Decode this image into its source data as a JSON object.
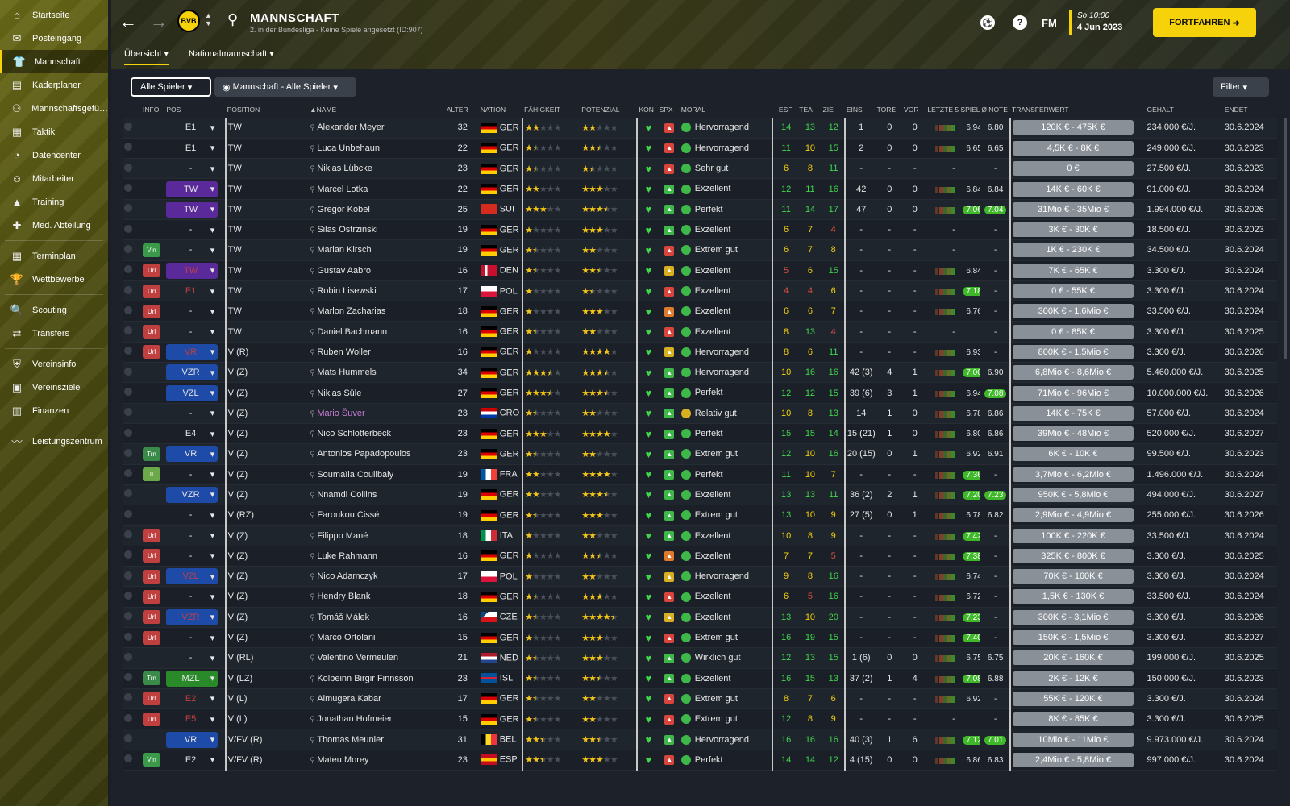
{
  "sidebar": [
    {
      "label": "Startseite",
      "icon": "home-icon",
      "g": "⌂"
    },
    {
      "label": "Posteingang",
      "icon": "inbox-icon",
      "g": "✉"
    },
    {
      "label": "Mannschaft",
      "icon": "shirt-icon",
      "g": "👕",
      "active": true
    },
    {
      "label": "Kaderplaner",
      "icon": "clipboard-icon",
      "g": "▤"
    },
    {
      "label": "Mannschaftsgefü…",
      "icon": "hierarchy-icon",
      "g": "⚇"
    },
    {
      "label": "Taktik",
      "icon": "tactics-icon",
      "g": "▦"
    },
    {
      "label": "Datencenter",
      "icon": "data-icon",
      "g": "◔"
    },
    {
      "label": "Mitarbeiter",
      "icon": "staff-icon",
      "g": "☺"
    },
    {
      "label": "Training",
      "icon": "training-icon",
      "g": "▲"
    },
    {
      "label": "Med. Abteilung",
      "icon": "medical-icon",
      "g": "✚"
    },
    {
      "sep": true
    },
    {
      "label": "Terminplan",
      "icon": "calendar-icon",
      "g": "▦"
    },
    {
      "label": "Wettbewerbe",
      "icon": "trophy-icon",
      "g": "🏆"
    },
    {
      "sep": true
    },
    {
      "label": "Scouting",
      "icon": "scouting-icon",
      "g": "🔍"
    },
    {
      "label": "Transfers",
      "icon": "transfers-icon",
      "g": "⇄"
    },
    {
      "sep": true
    },
    {
      "label": "Vereinsinfo",
      "icon": "shield-icon",
      "g": "⛨"
    },
    {
      "label": "Vereinsziele",
      "icon": "goals-icon",
      "g": "▣"
    },
    {
      "label": "Finanzen",
      "icon": "finance-icon",
      "g": "▥"
    },
    {
      "sep": true
    },
    {
      "label": "Leistungszentrum",
      "icon": "performance-icon",
      "g": "〰"
    }
  ],
  "header": {
    "title": "MANNSCHAFT",
    "subtitle": "2. in der Bundesliga - Keine Spiele angesetzt (ID:907)",
    "crest": "BVB",
    "fm": "FM",
    "day": "So 10:00",
    "date": "4 Jun 2023",
    "continue": "FORTFAHREN",
    "tabs": [
      "Übersicht",
      "Nationalmannschaft"
    ]
  },
  "toolbar": {
    "players": "Alle Spieler",
    "view": "Mannschaft - Alle Spieler",
    "filter": "Filter"
  },
  "columns": [
    "INFO",
    "POS",
    "POSITION",
    "▲NAME",
    "ALTER",
    "NATION",
    "FÄHIGKEIT",
    "POTENZIAL",
    "KON",
    "SPX",
    "MORAL",
    "ESF",
    "TEA",
    "ZIE",
    "EINS",
    "TORE",
    "VOR",
    "LETZTE 5 SPIELE",
    "Ø NOTE",
    "TRANSFERWERT",
    "GEHALT",
    "ENDET"
  ],
  "colors": {
    "accent": "#f5d20a",
    "green": "#3fb82a",
    "red": "#c04040",
    "purple": "#5a2a9a",
    "blue": "#1e4aa8",
    "darkgreen": "#2a8a2a"
  },
  "rows": [
    {
      "info": "",
      "pos": "E1",
      "pc": "",
      "position": "TW",
      "name": "Alexander Meyer",
      "age": "32",
      "nat": "GER",
      "ab": 2,
      "pot": 2,
      "spx": "r",
      "moral": "Hervorragend",
      "esf": "14",
      "tea": "13",
      "zie": "12",
      "eins": "1",
      "tore": "0",
      "vor": "0",
      "last": "6.94",
      "note": "6.80",
      "tw": "120K € - 475K €",
      "gehalt": "234.000 €/J.",
      "end": "30.6.2024"
    },
    {
      "info": "",
      "pos": "E1",
      "pc": "",
      "position": "TW",
      "name": "Luca Unbehaun",
      "age": "22",
      "nat": "GER",
      "ab": 1.5,
      "pot": 2.5,
      "spx": "r",
      "moral": "Hervorragend",
      "esf": "11",
      "tea": "10",
      "zie": "15",
      "eins": "2",
      "tore": "0",
      "vor": "0",
      "last": "6.65",
      "note": "6.65",
      "tw": "4,5K € - 8K €",
      "gehalt": "249.000 €/J.",
      "end": "30.6.2023"
    },
    {
      "info": "",
      "pos": "-",
      "pc": "",
      "position": "TW",
      "name": "Niklas Lübcke",
      "age": "23",
      "nat": "GER",
      "ab": 1.5,
      "pot": 1.5,
      "spx": "r",
      "moral": "Sehr gut",
      "esf": "6",
      "tea": "8",
      "zie": "11",
      "eins": "-",
      "tore": "-",
      "vor": "-",
      "last": "-",
      "note": "-",
      "tw": "0 €",
      "gehalt": "27.500 €/J.",
      "end": "30.6.2023"
    },
    {
      "info": "",
      "pos": "TW",
      "pc": "purple",
      "position": "TW",
      "name": "Marcel Lotka",
      "age": "22",
      "nat": "GER",
      "ab": 2,
      "pot": 3,
      "spx": "g",
      "moral": "Exzellent",
      "esf": "12",
      "tea": "11",
      "zie": "16",
      "eins": "42",
      "tore": "0",
      "vor": "0",
      "last": "6.84",
      "note": "6.84",
      "tw": "14K € - 60K €",
      "gehalt": "91.000 €/J.",
      "end": "30.6.2024"
    },
    {
      "info": "",
      "pos": "TW",
      "pc": "purple",
      "position": "TW",
      "name": "Gregor Kobel",
      "age": "25",
      "nat": "SUI",
      "ab": 3,
      "pot": 3.5,
      "spx": "g",
      "moral": "Perfekt",
      "esf": "11",
      "tea": "14",
      "zie": "17",
      "eins": "47",
      "tore": "0",
      "vor": "0",
      "last": "7.06",
      "note": "7.04",
      "tw": "31Mio € - 35Mio €",
      "gehalt": "1.994.000 €/J.",
      "end": "30.6.2026",
      "hi": true
    },
    {
      "info": "",
      "pos": "-",
      "pc": "",
      "position": "TW",
      "name": "Silas Ostrzinski",
      "age": "19",
      "nat": "GER",
      "ab": 1,
      "pot": 3,
      "spx": "g",
      "moral": "Exzellent",
      "esf": "6",
      "tea": "7",
      "zie": "4",
      "eins": "-",
      "tore": "-",
      "vor": "-",
      "last": "-",
      "note": "-",
      "tw": "3K € - 30K €",
      "gehalt": "18.500 €/J.",
      "end": "30.6.2023"
    },
    {
      "info": "Vin",
      "pos": "-",
      "pc": "",
      "position": "TW",
      "name": "Marian Kirsch",
      "age": "19",
      "nat": "GER",
      "ab": 1.5,
      "pot": 2,
      "spx": "r",
      "moral": "Extrem gut",
      "esf": "6",
      "tea": "7",
      "zie": "8",
      "eins": "-",
      "tore": "-",
      "vor": "-",
      "last": "-",
      "note": "-",
      "tw": "1K € - 230K €",
      "gehalt": "34.500 €/J.",
      "end": "30.6.2024"
    },
    {
      "info": "Url",
      "pos": "TW",
      "pc": "purple",
      "position": "TW",
      "name": "Gustav Aabro",
      "age": "16",
      "nat": "DEN",
      "ab": 1.5,
      "pot": 2.5,
      "spx": "y",
      "moral": "Exzellent",
      "esf": "5",
      "tea": "6",
      "zie": "15",
      "eins": "-",
      "tore": "-",
      "vor": "-",
      "last": "6.84",
      "note": "-",
      "tw": "7K € - 65K €",
      "gehalt": "3.300 €/J.",
      "end": "30.6.2024"
    },
    {
      "info": "Url",
      "pos": "E1",
      "pc": "",
      "position": "TW",
      "name": "Robin Lisewski",
      "age": "17",
      "nat": "POL",
      "ab": 1,
      "pot": 1.5,
      "spx": "r",
      "moral": "Exzellent",
      "esf": "4",
      "tea": "4",
      "zie": "6",
      "eins": "-",
      "tore": "-",
      "vor": "-",
      "last": "7.18",
      "note": "-",
      "tw": "0 € - 55K €",
      "gehalt": "3.300 €/J.",
      "end": "30.6.2024",
      "hl": true
    },
    {
      "info": "Url",
      "pos": "-",
      "pc": "",
      "position": "TW",
      "name": "Marlon Zacharias",
      "age": "18",
      "nat": "GER",
      "ab": 1,
      "pot": 3,
      "spx": "o",
      "moral": "Exzellent",
      "esf": "6",
      "tea": "6",
      "zie": "7",
      "eins": "-",
      "tore": "-",
      "vor": "-",
      "last": "6.76",
      "note": "-",
      "tw": "300K € - 1,6Mio €",
      "gehalt": "33.500 €/J.",
      "end": "30.6.2024"
    },
    {
      "info": "Url",
      "pos": "-",
      "pc": "",
      "position": "TW",
      "name": "Daniel Bachmann",
      "age": "16",
      "nat": "GER",
      "ab": 1.5,
      "pot": 2,
      "spx": "r",
      "moral": "Exzellent",
      "esf": "8",
      "tea": "13",
      "zie": "4",
      "eins": "-",
      "tore": "-",
      "vor": "-",
      "last": "-",
      "note": "-",
      "tw": "0 € - 85K €",
      "gehalt": "3.300 €/J.",
      "end": "30.6.2025"
    },
    {
      "info": "Url",
      "pos": "VR",
      "pc": "blue",
      "position": "V (R)",
      "name": "Ruben Woller",
      "age": "16",
      "nat": "GER",
      "ab": 1,
      "pot": 4,
      "spx": "y",
      "moral": "Hervorragend",
      "esf": "8",
      "tea": "6",
      "zie": "11",
      "eins": "-",
      "tore": "-",
      "vor": "-",
      "last": "6.93",
      "note": "-",
      "tw": "800K € - 1,5Mio €",
      "gehalt": "3.300 €/J.",
      "end": "30.6.2026"
    },
    {
      "info": "",
      "pos": "VZR",
      "pc": "blue",
      "position": "V (Z)",
      "name": "Mats Hummels",
      "age": "34",
      "nat": "GER",
      "ab": 3.5,
      "pot": 3.5,
      "spx": "g",
      "moral": "Hervorragend",
      "esf": "10",
      "tea": "16",
      "zie": "16",
      "eins": "42 (3)",
      "tore": "4",
      "vor": "1",
      "last": "7.00",
      "note": "6.90",
      "tw": "6,8Mio € - 8,6Mio €",
      "gehalt": "5.460.000 €/J.",
      "end": "30.6.2025",
      "hl": true
    },
    {
      "info": "",
      "pos": "VZL",
      "pc": "blue",
      "position": "V (Z)",
      "name": "Niklas Süle",
      "age": "27",
      "nat": "GER",
      "ab": 3.5,
      "pot": 3.5,
      "spx": "g",
      "moral": "Perfekt",
      "esf": "12",
      "tea": "12",
      "zie": "15",
      "eins": "39 (6)",
      "tore": "3",
      "vor": "1",
      "last": "6.94",
      "note": "7.08",
      "tw": "71Mio € - 96Mio €",
      "gehalt": "10.000.000 €/J.",
      "end": "30.6.2026",
      "hn": true
    },
    {
      "info": "",
      "pos": "-",
      "pc": "",
      "position": "V (Z)",
      "name": "Mario Šuver",
      "age": "23",
      "nat": "CRO",
      "ab": 1.5,
      "pot": 2,
      "spx": "g",
      "moral": "Relativ gut",
      "esf": "10",
      "tea": "8",
      "zie": "13",
      "eins": "14",
      "tore": "1",
      "vor": "0",
      "last": "6.78",
      "note": "6.86",
      "tw": "14K € - 75K €",
      "gehalt": "57.000 €/J.",
      "end": "30.6.2024",
      "loan": true
    },
    {
      "info": "",
      "pos": "E4",
      "pc": "",
      "position": "V (Z)",
      "name": "Nico Schlotterbeck",
      "age": "23",
      "nat": "GER",
      "ab": 3,
      "pot": 4,
      "spx": "g",
      "moral": "Perfekt",
      "esf": "15",
      "tea": "15",
      "zie": "14",
      "eins": "15 (21)",
      "tore": "1",
      "vor": "0",
      "last": "6.80",
      "note": "6.86",
      "tw": "39Mio € - 48Mio €",
      "gehalt": "520.000 €/J.",
      "end": "30.6.2027"
    },
    {
      "info": "Trn",
      "pos": "VR",
      "pc": "blue",
      "position": "V (Z)",
      "name": "Antonios Papadopoulos",
      "age": "23",
      "nat": "GER",
      "ab": 1.5,
      "pot": 2,
      "spx": "g",
      "moral": "Extrem gut",
      "esf": "12",
      "tea": "10",
      "zie": "16",
      "eins": "20 (15)",
      "tore": "0",
      "vor": "1",
      "last": "6.92",
      "note": "6.91",
      "tw": "6K € - 10K €",
      "gehalt": "99.500 €/J.",
      "end": "30.6.2023"
    },
    {
      "info": "II",
      "pos": "-",
      "pc": "",
      "position": "V (Z)",
      "name": "Soumaïla Coulibaly",
      "age": "19",
      "nat": "FRA",
      "ab": 2,
      "pot": 4,
      "spx": "g",
      "moral": "Perfekt",
      "esf": "11",
      "tea": "10",
      "zie": "7",
      "eins": "-",
      "tore": "-",
      "vor": "-",
      "last": "7.36",
      "note": "-",
      "tw": "3,7Mio € - 6,2Mio €",
      "gehalt": "1.496.000 €/J.",
      "end": "30.6.2024",
      "hl": true
    },
    {
      "info": "",
      "pos": "VZR",
      "pc": "blue",
      "position": "V (Z)",
      "name": "Nnamdi Collins",
      "age": "19",
      "nat": "GER",
      "ab": 2,
      "pot": 3.5,
      "spx": "g",
      "moral": "Exzellent",
      "esf": "13",
      "tea": "13",
      "zie": "11",
      "eins": "36 (2)",
      "tore": "2",
      "vor": "1",
      "last": "7.20",
      "note": "7.23",
      "tw": "950K € - 5,8Mio €",
      "gehalt": "494.000 €/J.",
      "end": "30.6.2027",
      "hl": true,
      "hn": true
    },
    {
      "info": "",
      "pos": "-",
      "pc": "",
      "position": "V (RZ)",
      "name": "Faroukou Cissé",
      "age": "19",
      "nat": "GER",
      "ab": 1.5,
      "pot": 3,
      "spx": "g",
      "moral": "Extrem gut",
      "esf": "13",
      "tea": "10",
      "zie": "9",
      "eins": "27 (5)",
      "tore": "0",
      "vor": "1",
      "last": "6.78",
      "note": "6.82",
      "tw": "2,9Mio € - 4,9Mio €",
      "gehalt": "255.000 €/J.",
      "end": "30.6.2026"
    },
    {
      "info": "Url",
      "pos": "-",
      "pc": "",
      "position": "V (Z)",
      "name": "Filippo Mané",
      "age": "18",
      "nat": "ITA",
      "ab": 1,
      "pot": 2,
      "spx": "g",
      "moral": "Exzellent",
      "esf": "10",
      "tea": "8",
      "zie": "9",
      "eins": "-",
      "tore": "-",
      "vor": "-",
      "last": "7.42",
      "note": "-",
      "tw": "100K € - 220K €",
      "gehalt": "33.500 €/J.",
      "end": "30.6.2024",
      "hl": true
    },
    {
      "info": "Url",
      "pos": "-",
      "pc": "",
      "position": "V (Z)",
      "name": "Luke Rahmann",
      "age": "16",
      "nat": "GER",
      "ab": 1,
      "pot": 2.5,
      "spx": "o",
      "moral": "Exzellent",
      "esf": "7",
      "tea": "7",
      "zie": "5",
      "eins": "-",
      "tore": "-",
      "vor": "-",
      "last": "7.38",
      "note": "-",
      "tw": "325K € - 800K €",
      "gehalt": "3.300 €/J.",
      "end": "30.6.2025",
      "hl": true
    },
    {
      "info": "Url",
      "pos": "VZL",
      "pc": "blue",
      "position": "V (Z)",
      "name": "Nico Adamczyk",
      "age": "17",
      "nat": "POL",
      "ab": 1,
      "pot": 2,
      "spx": "y",
      "moral": "Hervorragend",
      "esf": "9",
      "tea": "8",
      "zie": "16",
      "eins": "-",
      "tore": "-",
      "vor": "-",
      "last": "6.74",
      "note": "-",
      "tw": "70K € - 160K €",
      "gehalt": "3.300 €/J.",
      "end": "30.6.2024"
    },
    {
      "info": "Url",
      "pos": "-",
      "pc": "",
      "position": "V (Z)",
      "name": "Hendry Blank",
      "age": "18",
      "nat": "GER",
      "ab": 1.5,
      "pot": 3,
      "spx": "r",
      "moral": "Exzellent",
      "esf": "6",
      "tea": "5",
      "zie": "16",
      "eins": "-",
      "tore": "-",
      "vor": "-",
      "last": "6.72",
      "note": "-",
      "tw": "1,5K € - 130K €",
      "gehalt": "33.500 €/J.",
      "end": "30.6.2024"
    },
    {
      "info": "Url",
      "pos": "VZR",
      "pc": "blue",
      "position": "V (Z)",
      "name": "Tomáš Málek",
      "age": "16",
      "nat": "CZE",
      "ab": 1.5,
      "pot": 4.5,
      "spx": "y",
      "moral": "Exzellent",
      "esf": "13",
      "tea": "10",
      "zie": "20",
      "eins": "-",
      "tore": "-",
      "vor": "-",
      "last": "7.23",
      "note": "-",
      "tw": "300K € - 3,1Mio €",
      "gehalt": "3.300 €/J.",
      "end": "30.6.2026",
      "hl": true
    },
    {
      "info": "Url",
      "pos": "-",
      "pc": "",
      "position": "V (Z)",
      "name": "Marco Ortolani",
      "age": "15",
      "nat": "GER",
      "ab": 1,
      "pot": 3,
      "spx": "r",
      "moral": "Extrem gut",
      "esf": "16",
      "tea": "19",
      "zie": "15",
      "eins": "-",
      "tore": "-",
      "vor": "-",
      "last": "7.40",
      "note": "-",
      "tw": "150K € - 1,5Mio €",
      "gehalt": "3.300 €/J.",
      "end": "30.6.2027",
      "hl": true
    },
    {
      "info": "",
      "pos": "-",
      "pc": "",
      "position": "V (RL)",
      "name": "Valentino Vermeulen",
      "age": "21",
      "nat": "NED",
      "ab": 1.5,
      "pot": 3,
      "spx": "g",
      "moral": "Wirklich gut",
      "esf": "12",
      "tea": "13",
      "zie": "15",
      "eins": "1 (6)",
      "tore": "0",
      "vor": "0",
      "last": "6.75",
      "note": "6.75",
      "tw": "20K € - 160K €",
      "gehalt": "199.000 €/J.",
      "end": "30.6.2025"
    },
    {
      "info": "Trn",
      "pos": "MZL",
      "pc": "green",
      "position": "V (LZ)",
      "name": "Kolbeinn Birgir Finnsson",
      "age": "23",
      "nat": "ISL",
      "ab": 1.5,
      "pot": 2.5,
      "spx": "g",
      "moral": "Exzellent",
      "esf": "16",
      "tea": "15",
      "zie": "13",
      "eins": "37 (2)",
      "tore": "1",
      "vor": "4",
      "last": "7.08",
      "note": "6.88",
      "tw": "2K € - 12K €",
      "gehalt": "150.000 €/J.",
      "end": "30.6.2023",
      "hl": true
    },
    {
      "info": "Url",
      "pos": "E2",
      "pc": "",
      "position": "V (L)",
      "name": "Almugera Kabar",
      "age": "17",
      "nat": "GER",
      "ab": 1.5,
      "pot": 2,
      "spx": "r",
      "moral": "Extrem gut",
      "esf": "8",
      "tea": "7",
      "zie": "6",
      "eins": "-",
      "tore": "-",
      "vor": "-",
      "last": "6.92",
      "note": "-",
      "tw": "55K € - 120K €",
      "gehalt": "3.300 €/J.",
      "end": "30.6.2024"
    },
    {
      "info": "Url",
      "pos": "E5",
      "pc": "",
      "position": "V (L)",
      "name": "Jonathan Hofmeier",
      "age": "15",
      "nat": "GER",
      "ab": 1.5,
      "pot": 2,
      "spx": "r",
      "moral": "Extrem gut",
      "esf": "12",
      "tea": "8",
      "zie": "9",
      "eins": "-",
      "tore": "-",
      "vor": "-",
      "last": "-",
      "note": "-",
      "tw": "8K € - 85K €",
      "gehalt": "3.300 €/J.",
      "end": "30.6.2025"
    },
    {
      "info": "",
      "pos": "VR",
      "pc": "blue",
      "position": "V/FV (R)",
      "name": "Thomas Meunier",
      "age": "31",
      "nat": "BEL",
      "ab": 2.5,
      "pot": 2.5,
      "spx": "g",
      "moral": "Hervorragend",
      "esf": "16",
      "tea": "16",
      "zie": "16",
      "eins": "40 (3)",
      "tore": "1",
      "vor": "6",
      "last": "7.12",
      "note": "7.01",
      "tw": "10Mio € - 11Mio €",
      "gehalt": "9.973.000 €/J.",
      "end": "30.6.2024",
      "hl": true,
      "hn": true
    },
    {
      "info": "Vin",
      "pos": "E2",
      "pc": "",
      "position": "V/FV (R)",
      "name": "Mateu Morey",
      "age": "23",
      "nat": "ESP",
      "ab": 2.5,
      "pot": 3,
      "spx": "r",
      "moral": "Perfekt",
      "esf": "14",
      "tea": "14",
      "zie": "12",
      "eins": "4 (15)",
      "tore": "0",
      "vor": "0",
      "last": "6.86",
      "note": "6.83",
      "tw": "2,4Mio € - 5,8Mio €",
      "gehalt": "997.000 €/J.",
      "end": "30.6.2024"
    }
  ]
}
